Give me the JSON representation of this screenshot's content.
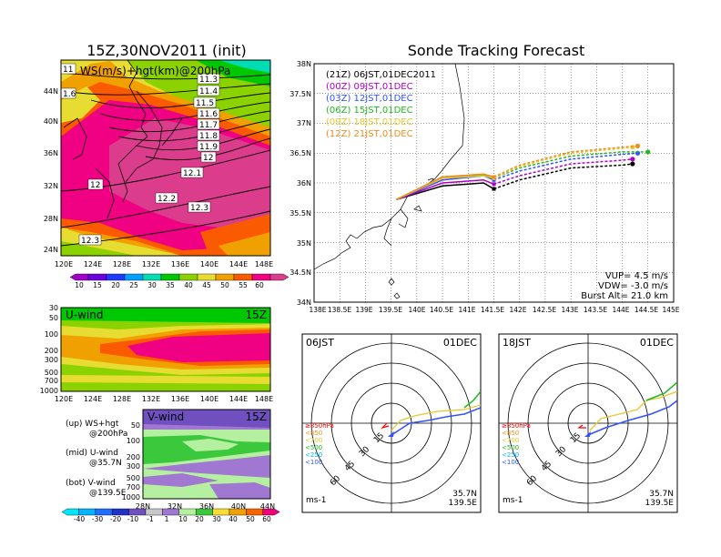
{
  "colors": {
    "cb10": "#a000c8",
    "cb15": "#6e00dc",
    "cb20": "#1e3cff",
    "cb25": "#00a0ff",
    "cb30": "#00dcb4",
    "cb35": "#00c800",
    "cb40": "#8cd200",
    "cb45": "#e6dc32",
    "cb50": "#f0a000",
    "cb55": "#fa5a00",
    "cb60": "#f00082",
    "cb65": "#dc3c8c",
    "vneg40": "#00e6ff",
    "vneg30": "#00b4ff",
    "vneg20": "#1e6eff",
    "vneg10": "#1e32c8",
    "vneg1": "#7050c0",
    "v1": "#a078d2",
    "v10": "#b4f0a0",
    "v20": "#3cc83c",
    "v30": "#fadc32",
    "v40": "#f0a000",
    "v50": "#fa6400",
    "v60": "#f0007a"
  },
  "title_main": "15Z,30NOV2011 (init)",
  "map_panel": {
    "label": "WS(m/s)+hgt(km)@200hPa",
    "lon_ticks": [
      "120E",
      "124E",
      "128E",
      "132E",
      "136E",
      "140E",
      "144E",
      "148E"
    ],
    "lat_ticks": [
      "44N",
      "40N",
      "36N",
      "32N",
      "28N",
      "24N"
    ],
    "contour_labels": [
      "11.3",
      "11.4",
      "11.5",
      "11.6",
      "11.7",
      "11.8",
      "11.9",
      "12",
      "12.1",
      "12",
      "12.2",
      "12.3",
      "12.3",
      "11",
      "1.6"
    ],
    "colorbar_labels": [
      "10",
      "15",
      "20",
      "25",
      "30",
      "35",
      "40",
      "45",
      "50",
      "55",
      "60"
    ]
  },
  "uwind_panel": {
    "label": "U-wind",
    "time": "15Z",
    "pres_ticks": [
      "30",
      "50",
      "100",
      "200",
      "300",
      "500",
      "700",
      "1000"
    ],
    "lon_ticks": [
      "120E",
      "124E",
      "128E",
      "132E",
      "136E",
      "140E",
      "144E",
      "148E"
    ]
  },
  "vwind_panel": {
    "label": "V-wind",
    "time": "15Z",
    "pres_ticks": [
      "50",
      "100",
      "200",
      "300",
      "500",
      "700",
      "1000"
    ],
    "lat_ticks": [
      "28N",
      "32N",
      "36N",
      "40N",
      "44N"
    ],
    "colorbar_labels": [
      "-40",
      "-30",
      "-20",
      "-10",
      "-1",
      "1",
      "10",
      "20",
      "30",
      "40",
      "50",
      "60"
    ]
  },
  "legend": {
    "up_line1": "(up) WS+hgt",
    "up_line2": "@200hPa",
    "mid_line1": "(mid) U-wind",
    "mid_line2": "@35.7N",
    "bot_line1": "(bot) V-wind",
    "bot_line2": "@139.5E"
  },
  "tracking": {
    "title": "Sonde Tracking Forecast",
    "lat_ticks": [
      "38N",
      "37.5N",
      "37N",
      "36.5N",
      "36N",
      "35.5N",
      "35N",
      "34.5N",
      "34N"
    ],
    "lon_ticks": [
      "138E",
      "138.5E",
      "139E",
      "139.5E",
      "140E",
      "140.5E",
      "141E",
      "141.5E",
      "142E",
      "142.5E",
      "143E",
      "143.5E",
      "144E",
      "144.5E",
      "145E"
    ],
    "launches": [
      {
        "label": "(21Z)  06JST,01DEC2011",
        "color": "#000000"
      },
      {
        "label": "(00Z)  09JST,01DEC",
        "color": "#b000c8"
      },
      {
        "label": "(03Z)  12JST,01DEC",
        "color": "#3250ff"
      },
      {
        "label": "(06Z)  15JST,01DEC",
        "color": "#22b822"
      },
      {
        "label": "(09Z)  18JST,01DEC",
        "color": "#e6c832"
      },
      {
        "label": "(12Z)  21JST,01DEC",
        "color": "#f08c1e"
      }
    ],
    "vup": "VUP= 4.5 m/s",
    "vdw": "VDW= -3.0 m/s",
    "burst": "Burst Alt= 21.0 km"
  },
  "hodo_left": {
    "time": "06JST",
    "date": "01DEC",
    "ring_labels": [
      "15",
      "30",
      "45",
      "60"
    ],
    "levels": [
      "≥850hPa",
      "<850",
      "<700",
      "<500",
      "<250",
      "<100"
    ],
    "units": "ms-1",
    "lat": "35.7N",
    "lon": "139.5E"
  },
  "hodo_right": {
    "time": "18JST",
    "date": "01DEC",
    "ring_labels": [
      "15",
      "30",
      "45",
      "60"
    ],
    "levels": [
      "≥850hPa",
      "<850",
      "<700",
      "<500",
      "<250",
      "<100"
    ],
    "units": "ms-1",
    "lat": "35.7N",
    "lon": "139.5E"
  },
  "chart_data": [
    {
      "type": "heatmap",
      "title": "15Z,30NOV2011 (init)",
      "subtitle": "WS(m/s)+hgt(km)@200hPa",
      "x_range": [
        "120E",
        "148E"
      ],
      "y_range": [
        "22N",
        "47N"
      ],
      "colorbar": [
        10,
        15,
        20,
        25,
        30,
        35,
        40,
        45,
        50,
        55,
        60
      ],
      "contour_labels_km": [
        11.3,
        11.4,
        11.5,
        11.6,
        11.7,
        11.8,
        11.9,
        12,
        12.1,
        12.2,
        12.3
      ]
    },
    {
      "type": "heatmap",
      "title": "U-wind",
      "x_range": [
        "120E",
        "148E"
      ],
      "y_ticks_hPa": [
        30,
        50,
        100,
        200,
        300,
        500,
        700,
        1000
      ]
    },
    {
      "type": "heatmap",
      "title": "V-wind",
      "x_range": [
        "28N",
        "44N"
      ],
      "y_ticks_hPa": [
        50,
        100,
        200,
        300,
        500,
        700,
        1000
      ],
      "colorbar": [
        -40,
        -30,
        -20,
        -10,
        -1,
        1,
        10,
        20,
        30,
        40,
        50,
        60
      ]
    },
    {
      "type": "line",
      "title": "Sonde Tracking Forecast",
      "xlim": [
        138,
        145
      ],
      "ylim": [
        34,
        38
      ],
      "series": [
        {
          "name": "(21Z)  06JST,01DEC2011",
          "points": [
            [
              139.6,
              35.72
            ],
            [
              140.5,
              35.95
            ],
            [
              141.3,
              36.0
            ],
            [
              141.5,
              35.9
            ],
            [
              142.0,
              36.05
            ],
            [
              143.0,
              36.25
            ],
            [
              144.0,
              36.3
            ],
            [
              144.2,
              36.32
            ]
          ]
        },
        {
          "name": "(00Z)  09JST,01DEC",
          "points": [
            [
              139.6,
              35.72
            ],
            [
              140.5,
              36.0
            ],
            [
              141.3,
              36.05
            ],
            [
              141.5,
              35.98
            ],
            [
              142.0,
              36.12
            ],
            [
              143.0,
              36.32
            ],
            [
              144.0,
              36.38
            ],
            [
              144.2,
              36.4
            ]
          ]
        },
        {
          "name": "(03Z)  12JST,01DEC",
          "points": [
            [
              139.6,
              35.72
            ],
            [
              140.5,
              36.05
            ],
            [
              141.3,
              36.12
            ],
            [
              141.5,
              36.05
            ],
            [
              142.0,
              36.2
            ],
            [
              143.0,
              36.4
            ],
            [
              144.0,
              36.48
            ],
            [
              144.3,
              36.5
            ]
          ]
        },
        {
          "name": "(06Z)  15JST,01DEC",
          "points": [
            [
              139.6,
              35.72
            ],
            [
              140.5,
              36.1
            ],
            [
              141.3,
              36.14
            ],
            [
              141.5,
              36.08
            ],
            [
              142.0,
              36.25
            ],
            [
              143.0,
              36.45
            ],
            [
              144.0,
              36.52
            ],
            [
              144.5,
              36.52
            ]
          ]
        },
        {
          "name": "(09Z)  18JST,01DEC",
          "points": [
            [
              139.6,
              35.72
            ],
            [
              140.5,
              36.08
            ],
            [
              141.3,
              36.12
            ],
            [
              141.5,
              36.08
            ],
            [
              142.0,
              36.28
            ],
            [
              143.0,
              36.5
            ],
            [
              144.0,
              36.58
            ],
            [
              144.2,
              36.6
            ]
          ]
        },
        {
          "name": "(12Z)  21JST,01DEC",
          "points": [
            [
              139.6,
              35.72
            ],
            [
              140.5,
              36.1
            ],
            [
              141.3,
              36.15
            ],
            [
              141.5,
              36.1
            ],
            [
              142.0,
              36.3
            ],
            [
              143.0,
              36.52
            ],
            [
              144.0,
              36.6
            ],
            [
              144.3,
              36.62
            ]
          ]
        }
      ]
    }
  ]
}
